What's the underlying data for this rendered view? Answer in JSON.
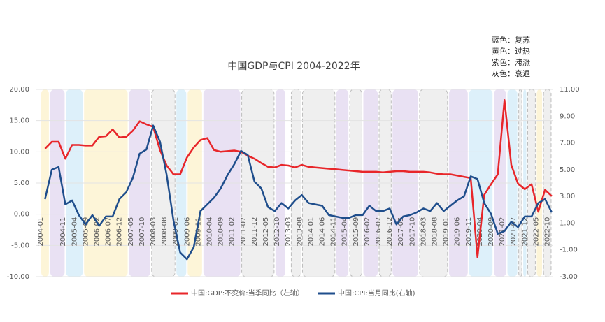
{
  "chart_data": {
    "type": "line",
    "title": "中国GDP与CPI 2004-2022年",
    "notes": [
      "蓝色：复苏",
      "黄色：过热",
      "紫色：滞涨",
      "灰色：衰退"
    ],
    "x": [
      "2004-03",
      "2004-06",
      "2004-09",
      "2004-12",
      "2005-03",
      "2005-06",
      "2005-09",
      "2005-12",
      "2006-03",
      "2006-06",
      "2006-09",
      "2006-12",
      "2007-03",
      "2007-06",
      "2007-09",
      "2007-12",
      "2008-03",
      "2008-06",
      "2008-09",
      "2008-12",
      "2009-03",
      "2009-06",
      "2009-09",
      "2009-12",
      "2010-03",
      "2010-06",
      "2010-09",
      "2010-12",
      "2011-03",
      "2011-06",
      "2011-09",
      "2011-12",
      "2012-03",
      "2012-06",
      "2012-09",
      "2012-12",
      "2013-03",
      "2013-06",
      "2013-09",
      "2013-12",
      "2014-03",
      "2014-06",
      "2014-09",
      "2014-12",
      "2015-03",
      "2015-06",
      "2015-09",
      "2015-12",
      "2016-03",
      "2016-06",
      "2016-09",
      "2016-12",
      "2017-03",
      "2017-06",
      "2017-09",
      "2017-12",
      "2018-03",
      "2018-06",
      "2018-09",
      "2018-12",
      "2019-03",
      "2019-06",
      "2019-09",
      "2019-12",
      "2020-03",
      "2020-06",
      "2020-09",
      "2020-12",
      "2021-03",
      "2021-06",
      "2021-09",
      "2021-12",
      "2022-03",
      "2022-06",
      "2022-09",
      "2022-12"
    ],
    "xticks": [
      "2004-01",
      "2004-11",
      "2005-04",
      "2005-09",
      "2006-02",
      "2006-07",
      "2006-12",
      "2007-05",
      "2007-10",
      "2008-03",
      "2008-08",
      "2009-01",
      "2009-06",
      "2009-11",
      "2010-04",
      "2010-09",
      "2011-02",
      "2011-07",
      "2011-12",
      "2012-05",
      "2012-10",
      "2013-03",
      "2013-08",
      "2014-01",
      "2014-06",
      "2014-11",
      "2015-04",
      "2015-09",
      "2016-02",
      "2016-07",
      "2016-12",
      "2017-05",
      "2017-10",
      "2018-03",
      "2018-08",
      "2019-01",
      "2019-06",
      "2019-11",
      "2020-04",
      "2020-09",
      "2021-02",
      "2021-07",
      "2021-12",
      "2022-05",
      "2022-10"
    ],
    "series": [
      {
        "name": "中国:GDP:不变价:当季同比（左轴）",
        "color": "#e8262a",
        "axis": "y",
        "values": [
          10.5,
          11.6,
          11.6,
          8.9,
          11.1,
          11.1,
          11.0,
          11.0,
          12.4,
          12.5,
          13.6,
          12.3,
          12.4,
          13.4,
          14.9,
          14.4,
          14.0,
          10.3,
          7.8,
          6.4,
          6.4,
          9.1,
          10.7,
          11.9,
          12.2,
          10.3,
          10.0,
          10.1,
          10.2,
          10.0,
          9.4,
          8.9,
          8.2,
          7.6,
          7.5,
          7.9,
          7.8,
          7.5,
          7.9,
          7.6,
          7.5,
          7.4,
          7.3,
          7.2,
          7.1,
          7.0,
          6.9,
          6.8,
          6.8,
          6.8,
          6.7,
          6.8,
          6.9,
          6.9,
          6.8,
          6.8,
          6.8,
          6.7,
          6.5,
          6.4,
          6.4,
          6.2,
          6.0,
          5.8,
          -6.9,
          3.1,
          4.8,
          6.4,
          18.3,
          7.9,
          4.9,
          4.0,
          4.8,
          0.4,
          3.9,
          2.9
        ]
      },
      {
        "name": "中国:CPI:当月同比(右轴)",
        "color": "#1f4e8c",
        "axis": "y2",
        "values": [
          2.8,
          5.0,
          5.2,
          2.4,
          2.7,
          1.6,
          0.9,
          1.6,
          0.8,
          1.5,
          1.5,
          2.8,
          3.3,
          4.4,
          6.2,
          6.5,
          8.3,
          7.1,
          4.6,
          1.2,
          -1.2,
          -1.7,
          -0.8,
          1.9,
          2.4,
          2.9,
          3.6,
          4.6,
          5.4,
          6.4,
          6.1,
          4.1,
          3.6,
          2.2,
          1.9,
          2.5,
          2.1,
          2.7,
          3.1,
          2.5,
          2.4,
          2.3,
          1.6,
          1.5,
          1.4,
          1.4,
          1.6,
          1.6,
          2.3,
          1.9,
          1.9,
          2.1,
          0.9,
          1.5,
          1.6,
          1.8,
          2.1,
          1.9,
          2.5,
          1.9,
          2.3,
          2.7,
          3.0,
          4.5,
          4.3,
          2.5,
          1.7,
          0.2,
          0.4,
          1.1,
          0.7,
          1.5,
          1.5,
          2.5,
          2.8,
          1.8
        ]
      }
    ],
    "ylim": [
      -10,
      20
    ],
    "yticks": [
      {
        "value": -10,
        "label": "-10.00"
      },
      {
        "value": -5,
        "label": "-5.00"
      },
      {
        "value": 0,
        "label": "0.00"
      },
      {
        "value": 5,
        "label": "5.00"
      },
      {
        "value": 10,
        "label": "10.00"
      },
      {
        "value": 15,
        "label": "15.00"
      },
      {
        "value": 20,
        "label": "20.00"
      }
    ],
    "y2lim": [
      -3,
      11
    ],
    "y2ticks": [
      {
        "value": -3,
        "label": "-3.00"
      },
      {
        "value": -1,
        "label": "-1.00"
      },
      {
        "value": 1,
        "label": "1.00"
      },
      {
        "value": 3,
        "label": "3.00"
      },
      {
        "value": 5,
        "label": "5.00"
      },
      {
        "value": 7,
        "label": "7.00"
      },
      {
        "value": 9,
        "label": "9.00"
      },
      {
        "value": 11,
        "label": "11.00"
      }
    ],
    "grid": true,
    "phases": [
      {
        "start": "2004-01",
        "end": "2004-05",
        "color": "#fdf5d8"
      },
      {
        "start": "2004-05",
        "end": "2004-12",
        "color": "#e9e1f3"
      },
      {
        "start": "2004-12",
        "end": "2005-08",
        "color": "#ddf0fa"
      },
      {
        "start": "2005-08",
        "end": "2007-04",
        "color": "#fdf5d8"
      },
      {
        "start": "2007-04",
        "end": "2008-02",
        "color": "#e9e1f3"
      },
      {
        "start": "2008-02",
        "end": "2009-01",
        "color": "#efefef"
      },
      {
        "start": "2009-01",
        "end": "2009-06",
        "color": "#ddf0fa"
      },
      {
        "start": "2009-06",
        "end": "2010-01",
        "color": "#fdf5d8"
      },
      {
        "start": "2010-01",
        "end": "2011-06",
        "color": "#e9e1f3"
      },
      {
        "start": "2011-06",
        "end": "2012-09",
        "color": "#efefef"
      },
      {
        "start": "2012-09",
        "end": "2013-02",
        "color": "#e9e1f3"
      },
      {
        "start": "2013-04",
        "end": "2013-09",
        "color": "#efefef"
      },
      {
        "start": "2013-09",
        "end": "2014-12",
        "color": "#efefef"
      },
      {
        "start": "2014-12",
        "end": "2015-06",
        "color": "#e9e1f3"
      },
      {
        "start": "2015-06",
        "end": "2015-12",
        "color": "#efefef"
      },
      {
        "start": "2015-12",
        "end": "2016-07",
        "color": "#e9e1f3"
      },
      {
        "start": "2016-07",
        "end": "2017-01",
        "color": "#efefef"
      },
      {
        "start": "2017-01",
        "end": "2018-01",
        "color": "#e9e1f3"
      },
      {
        "start": "2018-01",
        "end": "2019-02",
        "color": "#efefef"
      },
      {
        "start": "2019-02",
        "end": "2019-11",
        "color": "#e9e1f3"
      },
      {
        "start": "2019-11",
        "end": "2020-10",
        "color": "#ddf0fa"
      },
      {
        "start": "2020-10",
        "end": "2021-04",
        "color": "#e9e1f3"
      },
      {
        "start": "2021-04",
        "end": "2021-09",
        "color": "#ddf0fa"
      },
      {
        "start": "2021-09",
        "end": "2021-11",
        "color": "#efefef"
      },
      {
        "start": "2021-11",
        "end": "2022-01",
        "color": "#ddf0fa"
      },
      {
        "start": "2022-01",
        "end": "2022-05",
        "color": "#efefef"
      },
      {
        "start": "2022-05",
        "end": "2022-08",
        "color": "#fdf5d8"
      },
      {
        "start": "2022-08",
        "end": "2022-12",
        "color": "#efefef"
      }
    ]
  }
}
